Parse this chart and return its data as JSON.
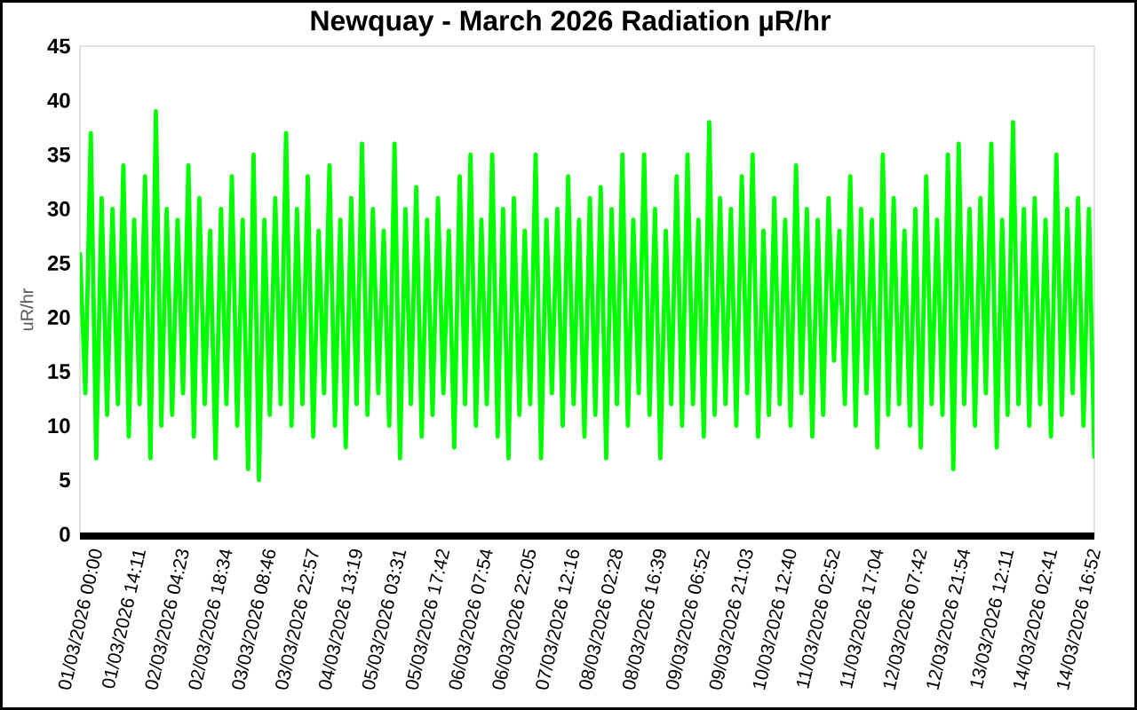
{
  "chart_data": {
    "type": "line",
    "title": "Newquay -  March  2026  Radiation µR/hr",
    "ylabel": "uR/hr",
    "categories": [
      "01/03/2026 00:00",
      null,
      null,
      null,
      null,
      null,
      null,
      null,
      "01/03/2026 14:11",
      null,
      null,
      null,
      null,
      null,
      null,
      null,
      "02/03/2026 04:23",
      null,
      null,
      null,
      null,
      null,
      null,
      null,
      "02/03/2026 18:34",
      null,
      null,
      null,
      null,
      null,
      null,
      null,
      "03/03/2026 08:46",
      null,
      null,
      null,
      null,
      null,
      null,
      null,
      "03/03/2026 22:57",
      null,
      null,
      null,
      null,
      null,
      null,
      null,
      "04/03/2026 13:19",
      null,
      null,
      null,
      null,
      null,
      null,
      null,
      "05/03/2026 03:31",
      null,
      null,
      null,
      null,
      null,
      null,
      null,
      "05/03/2026 17:42",
      null,
      null,
      null,
      null,
      null,
      null,
      null,
      "06/03/2026 07:54",
      null,
      null,
      null,
      null,
      null,
      null,
      null,
      "06/03/2026 22:05",
      null,
      null,
      null,
      null,
      null,
      null,
      null,
      "07/03/2026 12:16",
      null,
      null,
      null,
      null,
      null,
      null,
      null,
      "08/03/2026 02:28",
      null,
      null,
      null,
      null,
      null,
      null,
      null,
      "08/03/2026 16:39",
      null,
      null,
      null,
      null,
      null,
      null,
      null,
      "09/03/2026 06:52",
      null,
      null,
      null,
      null,
      null,
      null,
      null,
      "09/03/2026 21:03",
      null,
      null,
      null,
      null,
      null,
      null,
      null,
      "10/03/2026 12:40",
      null,
      null,
      null,
      null,
      null,
      null,
      null,
      "11/03/2026 02:52",
      null,
      null,
      null,
      null,
      null,
      null,
      null,
      "11/03/2026 17:04",
      null,
      null,
      null,
      null,
      null,
      null,
      null,
      "12/03/2026 07:42",
      null,
      null,
      null,
      null,
      null,
      null,
      null,
      "12/03/2026 21:54",
      null,
      null,
      null,
      null,
      null,
      null,
      null,
      "13/03/2026 12:11",
      null,
      null,
      null,
      null,
      null,
      null,
      null,
      "14/03/2026 02:41",
      null,
      null,
      null,
      null,
      null,
      null,
      null,
      "14/03/2026 16:52",
      null,
      null,
      null
    ],
    "series": [
      {
        "color": "#00ff00",
        "values": [
          26,
          13,
          37,
          7,
          31,
          11,
          30,
          12,
          34,
          9,
          29,
          12,
          33,
          7,
          39,
          10,
          30,
          11,
          29,
          13,
          34,
          9,
          31,
          12,
          28,
          7,
          30,
          12,
          33,
          10,
          29,
          6,
          35,
          5,
          29,
          11,
          31,
          12,
          37,
          10,
          30,
          12,
          33,
          9,
          28,
          13,
          34,
          10,
          29,
          8,
          31,
          12,
          36,
          11,
          30,
          13,
          28,
          10,
          36,
          7,
          30,
          12,
          32,
          9,
          29,
          11,
          31,
          13,
          28,
          8,
          33,
          12,
          35,
          10,
          29,
          12,
          35,
          9,
          30,
          7,
          31,
          11,
          28,
          12,
          35,
          7,
          29,
          13,
          30,
          10,
          33,
          12,
          29,
          9,
          31,
          11,
          32,
          7,
          30,
          12,
          35,
          10,
          29,
          13,
          35,
          11,
          30,
          7,
          28,
          12,
          33,
          10,
          35,
          12,
          29,
          9,
          38,
          11,
          31,
          12,
          30,
          10,
          33,
          13,
          35,
          9,
          28,
          11,
          31,
          12,
          29,
          10,
          34,
          13,
          30,
          9,
          29,
          11,
          31,
          16,
          28,
          12,
          33,
          10,
          30,
          13,
          29,
          8,
          35,
          11,
          31,
          12,
          28,
          10,
          30,
          8,
          33,
          12,
          29,
          11,
          35,
          6,
          36,
          12,
          30,
          10,
          31,
          13,
          36,
          8,
          29,
          11,
          38,
          12,
          30,
          10,
          31,
          12,
          29,
          9,
          35,
          11,
          30,
          13,
          31,
          10,
          30,
          7
        ]
      }
    ],
    "ylim": [
      0,
      45
    ],
    "yticks": [
      0,
      5,
      10,
      15,
      20,
      25,
      30,
      35,
      40,
      45
    ],
    "marker": "none"
  }
}
